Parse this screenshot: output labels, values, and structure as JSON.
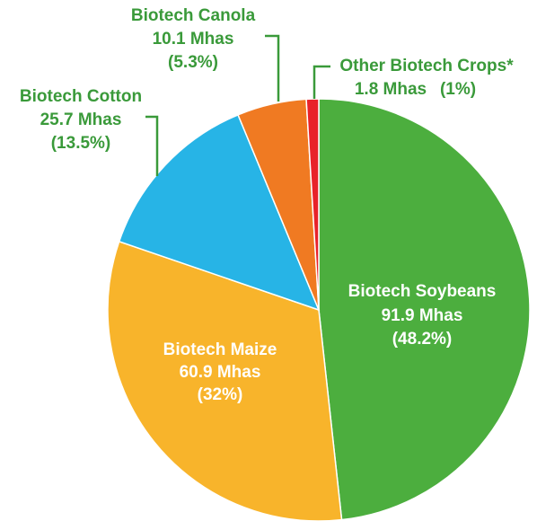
{
  "chart_data": {
    "type": "pie",
    "categories": [
      "Biotech Soybeans",
      "Biotech Maize",
      "Biotech Cotton",
      "Biotech Canola",
      "Other Biotech Crops*"
    ],
    "values": [
      91.9,
      60.9,
      25.7,
      10.1,
      1.8
    ],
    "value_labels": [
      "91.9 Mhas",
      "60.9 Mhas",
      "25.7 Mhas",
      "10.1 Mhas",
      "1.8 Mhas"
    ],
    "percents": [
      48.2,
      32,
      13.5,
      5.3,
      1
    ],
    "percent_labels": [
      "(48.2%)",
      "(32%)",
      "(13.5%)",
      "(5.3%)",
      "(1%)"
    ],
    "colors": [
      "#4cae3e",
      "#f8b42b",
      "#27b4e6",
      "#f07a22",
      "#e8222a"
    ]
  }
}
